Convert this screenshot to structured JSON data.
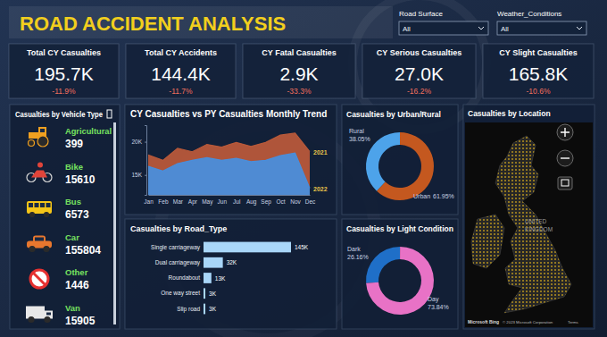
{
  "header": {
    "title": "ROAD ACCIDENT ANALYSIS"
  },
  "filters": [
    {
      "label": "Road Surface",
      "value": "All"
    },
    {
      "label": "Weather_Conditions",
      "value": "All"
    }
  ],
  "kpis": [
    {
      "title": "Total CY Casualties",
      "value": "195.7K",
      "change": "-11.9%"
    },
    {
      "title": "Total CY Accidents",
      "value": "144.4K",
      "change": "-11.7%"
    },
    {
      "title": "CY Fatal Casualties",
      "value": "2.9K",
      "change": "-33.3%"
    },
    {
      "title": "CY Serious Casualties",
      "value": "27.0K",
      "change": "-16.2%"
    },
    {
      "title": "CY Slight Casualties",
      "value": "165.8K",
      "change": "-10.6%"
    }
  ],
  "vehicle_panel": {
    "title": "Casualties by Vehicle Type",
    "items": [
      {
        "label": "Agricultural",
        "value": 399
      },
      {
        "label": "Bike",
        "value": 15610
      },
      {
        "label": "Bus",
        "value": 6573
      },
      {
        "label": "Car",
        "value": 155804
      },
      {
        "label": "Other",
        "value": 1446
      },
      {
        "label": "Van",
        "value": 15905
      }
    ]
  },
  "chart_data": [
    {
      "type": "area",
      "title": "CY Casualties vs PY Casualties Monthly Trend",
      "categories": [
        "Jan",
        "Feb",
        "Mar",
        "Apr",
        "May",
        "Jun",
        "Jul",
        "Aug",
        "Sep",
        "Oct",
        "Nov",
        "Dec"
      ],
      "series": [
        {
          "name": "2021",
          "color": "#b8593a",
          "values": [
            18000,
            17200,
            19000,
            18500,
            19600,
            19200,
            19900,
            19300,
            19900,
            21000,
            21300,
            18500
          ]
        },
        {
          "name": "2022",
          "color": "#4a8edb",
          "values": [
            16300,
            15600,
            16700,
            17200,
            17600,
            17200,
            17500,
            17000,
            17200,
            17900,
            18300,
            13000
          ]
        }
      ],
      "ylim": [
        12000,
        22500
      ],
      "yticks": [
        {
          "value": 15000,
          "label": "15K"
        },
        {
          "value": 20000,
          "label": "20K"
        }
      ]
    },
    {
      "type": "bar",
      "orientation": "horizontal",
      "title": "Casualties by Road_Type",
      "categories": [
        "Single carriageway",
        "Dual carriageway",
        "Roundabout",
        "One way street",
        "Slip road"
      ],
      "values": [
        145000,
        32000,
        13000,
        3000,
        3000
      ],
      "value_labels": [
        "145K",
        "32K",
        "13K",
        "3K",
        "3K"
      ],
      "color": "#a9d6f8",
      "data_labels": true,
      "tick_labels": "y"
    },
    {
      "type": "donut",
      "title": "Casualties by Urban/Rural",
      "categories": [
        "Rural",
        "Urban"
      ],
      "values": [
        38.05,
        61.95
      ],
      "value_labels": [
        "38.05%",
        "61.95%"
      ],
      "colors": [
        "#4da3ea",
        "#c4581f"
      ],
      "data_labels": true
    },
    {
      "type": "donut",
      "title": "Casualties by Light Condition",
      "categories": [
        "Dark",
        "Day"
      ],
      "values": [
        26.16,
        73.84
      ],
      "value_labels": [
        "26.16%",
        "73.84%"
      ],
      "colors": [
        "#1f6fc8",
        "#e872c6"
      ],
      "data_labels": true
    }
  ],
  "map": {
    "title": "Casualties by Location",
    "country_label": [
      "UNITED",
      "KINGDOM"
    ],
    "attribution": "Microsoft Bing",
    "copyright": "© 2023 Microsoft Corporation",
    "terms": "Terms"
  }
}
